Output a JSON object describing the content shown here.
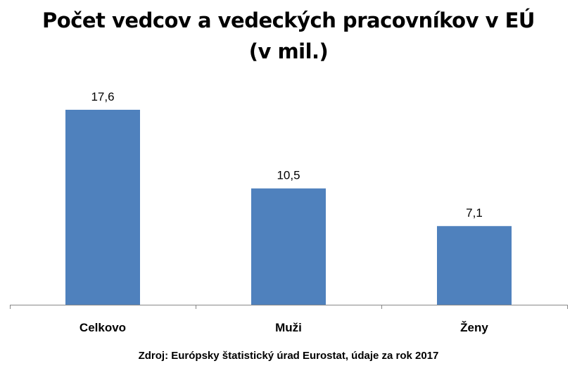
{
  "chart_data": {
    "type": "bar",
    "title_line1": "Počet vedcov a vedeckých pracovníkov v EÚ",
    "title_line2": "(v mil.)",
    "categories": [
      "Celkovo",
      "Muži",
      "Ženy"
    ],
    "values": [
      17.6,
      10.5,
      7.1
    ],
    "value_labels": [
      "17,6",
      "10,5",
      "7,1"
    ],
    "ylim": [
      0,
      20
    ],
    "grid": false,
    "legend": "none",
    "bar_color": "#4f81bd",
    "source": "Zdroj: Európsky štatistický úrad Eurostat, údaje za rok 2017"
  }
}
